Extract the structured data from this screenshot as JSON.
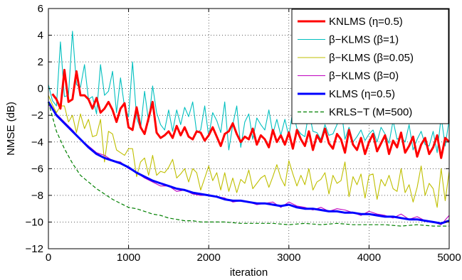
{
  "chart_data": {
    "type": "line",
    "xlabel": "iteration",
    "ylabel": "NMSE (dB)",
    "xlim": [
      0,
      5000
    ],
    "ylim": [
      -12,
      6
    ],
    "xticks": [
      0,
      1000,
      2000,
      3000,
      4000,
      5000
    ],
    "yticks": [
      -12,
      -10,
      -8,
      -6,
      -4,
      -2,
      0,
      2,
      4,
      6
    ],
    "xtick_labels": [
      "0",
      "1000",
      "2000",
      "3000",
      "4000",
      "5000"
    ],
    "ytick_labels": [
      "−12",
      "−10",
      "−8",
      "−6",
      "−4",
      "−2",
      "0",
      "2",
      "4",
      "6"
    ],
    "grid": true,
    "legend_position": "top-right",
    "series": [
      {
        "name": "KNLMS (η=0.5)",
        "color": "#ff0000",
        "style": "solid-thick",
        "x": [
          50,
          100,
          150,
          200,
          250,
          300,
          350,
          400,
          450,
          500,
          550,
          600,
          650,
          700,
          750,
          800,
          850,
          900,
          950,
          1000,
          1050,
          1100,
          1150,
          1200,
          1250,
          1300,
          1350,
          1400,
          1450,
          1500,
          1550,
          1600,
          1650,
          1700,
          1750,
          1800,
          1850,
          1900,
          1950,
          2000,
          2050,
          2100,
          2150,
          2200,
          2250,
          2300,
          2350,
          2400,
          2450,
          2500,
          2550,
          2600,
          2650,
          2700,
          2750,
          2800,
          2850,
          2900,
          2950,
          3000,
          3050,
          3100,
          3150,
          3200,
          3250,
          3300,
          3350,
          3400,
          3450,
          3500,
          3550,
          3600,
          3650,
          3700,
          3750,
          3800,
          3850,
          3900,
          3950,
          4000,
          4050,
          4100,
          4150,
          4200,
          4250,
          4300,
          4350,
          4400,
          4450,
          4500,
          4550,
          4600,
          4650,
          4700,
          4750,
          4800,
          4850,
          4900,
          4950,
          5000
        ],
        "values": [
          -0.4,
          -0.8,
          -1.5,
          1.4,
          -1.0,
          -0.8,
          1.3,
          -0.5,
          -0.5,
          -0.8,
          -1.5,
          -0.7,
          -1.8,
          -1.5,
          -1.0,
          -1.6,
          -2.5,
          -1.5,
          -1.1,
          -2.9,
          -3.1,
          -1.4,
          -2.9,
          -3.4,
          -2.2,
          -1.0,
          -3.3,
          -3.7,
          -3.5,
          -3.2,
          -3.7,
          -2.8,
          -3.5,
          -2.9,
          -3.6,
          -3.8,
          -3.2,
          -3.3,
          -3.9,
          -3.5,
          -2.9,
          -3.6,
          -4.3,
          -3.4,
          -3.2,
          -2.6,
          -3.4,
          -4.0,
          -3.6,
          -3.8,
          -3.0,
          -4.2,
          -3.5,
          -3.8,
          -4.4,
          -3.1,
          -4.0,
          -3.5,
          -4.2,
          -3.3,
          -4.5,
          -3.1,
          -3.8,
          -4.3,
          -3.2,
          -4.6,
          -3.5,
          -4.0,
          -3.0,
          -4.1,
          -4.5,
          -3.4,
          -3.8,
          -4.8,
          -3.1,
          -4.2,
          -4.6,
          -3.7,
          -4.9,
          -4.0,
          -3.4,
          -4.7,
          -4.1,
          -3.5,
          -4.9,
          -3.9,
          -4.4,
          -3.3,
          -4.8,
          -4.3,
          -3.6,
          -5.1,
          -4.2,
          -3.7,
          -4.9,
          -4.4,
          -3.5,
          -5.2,
          -3.7,
          -4.0
        ]
      },
      {
        "name": "β−KLMS (β=1)",
        "color": "#00bfbf",
        "style": "solid-thin",
        "x": [
          0,
          50,
          100,
          150,
          200,
          250,
          300,
          350,
          400,
          450,
          500,
          550,
          600,
          650,
          700,
          750,
          800,
          850,
          900,
          950,
          1000,
          1050,
          1100,
          1150,
          1200,
          1250,
          1300,
          1350,
          1400,
          1450,
          1500,
          1550,
          1600,
          1650,
          1700,
          1750,
          1800,
          1850,
          1900,
          1950,
          2000,
          2050,
          2100,
          2150,
          2200,
          2250,
          2300,
          2350,
          2400,
          2450,
          2500,
          2550,
          2600,
          2650,
          2700,
          2750,
          2800,
          2850,
          2900,
          2950,
          3000,
          3050,
          3100,
          3150,
          3200,
          3250,
          3300,
          3350,
          3400,
          3450,
          3500,
          3550,
          3600,
          3650,
          3700,
          3750,
          3800,
          3850,
          3900,
          3950,
          4000,
          4050,
          4100,
          4150,
          4200,
          4250,
          4300,
          4350,
          4400,
          4450,
          4500,
          4550,
          4600,
          4650,
          4700,
          4750,
          4800,
          4850,
          4900,
          4950,
          5000
        ],
        "values": [
          0.3,
          -0.9,
          -1.3,
          3.5,
          -0.6,
          -0.5,
          4.3,
          0.3,
          0.1,
          1.8,
          -0.8,
          -0.6,
          -1.9,
          1.8,
          -0.5,
          -0.2,
          1.3,
          -1.8,
          0.8,
          -1.4,
          -2.1,
          2.0,
          -2.2,
          -3.0,
          -0.2,
          -2.5,
          0.2,
          -1.8,
          -2.7,
          -3.1,
          -1.6,
          -3.2,
          -1.6,
          -2.7,
          -1.4,
          -2.1,
          -1.0,
          -3.3,
          -3.1,
          -1.3,
          -3.6,
          -1.8,
          -2.4,
          -3.3,
          -1.0,
          -4.6,
          -2.7,
          -1.3,
          -4.4,
          -2.5,
          -1.9,
          -3.8,
          -2.2,
          -2.7,
          -3.1,
          -1.6,
          -3.4,
          -2.3,
          -3.5,
          -2.3,
          -3.6,
          -1.6,
          -3.0,
          -3.4,
          -3.6,
          -1.7,
          -3.2,
          -3.3,
          -3.8,
          -2.7,
          -3.5,
          -3.4,
          -2.7,
          -1.4,
          -3.8,
          -2.9,
          -4.0,
          -3.6,
          -3.1,
          -3.9,
          -3.4,
          -3.1,
          -4.0,
          -2.9,
          -3.4,
          -4.1,
          -2.4,
          -3.8,
          -3.6,
          -4.0,
          -2.7,
          -4.6,
          -3.8,
          -3.2,
          -4.2,
          -4.3,
          -3.2,
          -4.8,
          -2.1,
          -4.3,
          -2.3
        ]
      },
      {
        "name": "β−KLMS (β=0.05)",
        "color": "#bfbf00",
        "style": "solid-thin",
        "x": [
          0,
          50,
          100,
          150,
          200,
          250,
          300,
          350,
          400,
          450,
          500,
          550,
          600,
          650,
          700,
          750,
          800,
          850,
          900,
          950,
          1000,
          1050,
          1100,
          1150,
          1200,
          1250,
          1300,
          1350,
          1400,
          1450,
          1500,
          1550,
          1600,
          1650,
          1700,
          1750,
          1800,
          1850,
          1900,
          1950,
          2000,
          2050,
          2100,
          2150,
          2200,
          2250,
          2300,
          2350,
          2400,
          2450,
          2500,
          2550,
          2600,
          2650,
          2700,
          2750,
          2800,
          2850,
          2900,
          2950,
          3000,
          3050,
          3100,
          3150,
          3200,
          3250,
          3300,
          3350,
          3400,
          3450,
          3500,
          3550,
          3600,
          3650,
          3700,
          3750,
          3800,
          3850,
          3900,
          3950,
          4000,
          4050,
          4100,
          4150,
          4200,
          4250,
          4300,
          4350,
          4400,
          4450,
          4500,
          4550,
          4600,
          4650,
          4700,
          4750,
          4800,
          4850,
          4900,
          4950,
          5000
        ],
        "values": [
          -0.5,
          -1.2,
          -1.8,
          -1.3,
          -1.3,
          -2.5,
          -2.0,
          -3.3,
          -1.9,
          -3.0,
          -2.3,
          -3.6,
          -3.5,
          -2.3,
          -5.5,
          -3.2,
          -3.4,
          -4.6,
          -4.8,
          -5.0,
          -4.5,
          -4.5,
          -6.6,
          -5.5,
          -5.2,
          -6.5,
          -5.0,
          -6.5,
          -6.2,
          -6.3,
          -5.9,
          -5.3,
          -6.7,
          -6.4,
          -6.0,
          -7.0,
          -6.0,
          -6.3,
          -7.6,
          -6.7,
          -5.8,
          -6.9,
          -6.3,
          -7.6,
          -6.3,
          -7.7,
          -6.7,
          -7.8,
          -6.8,
          -7.1,
          -6.1,
          -7.5,
          -7.1,
          -6.7,
          -6.5,
          -7.4,
          -6.6,
          -5.7,
          -6.7,
          -7.3,
          -5.4,
          -6.4,
          -7.3,
          -6.5,
          -7.2,
          -6.0,
          -7.6,
          -7.0,
          -6.8,
          -6.3,
          -7.9,
          -6.5,
          -7.1,
          -6.9,
          -5.5,
          -8.1,
          -6.6,
          -7.2,
          -6.4,
          -8.2,
          -6.5,
          -6.4,
          -8.3,
          -6.8,
          -7.3,
          -6.5,
          -7.5,
          -7.7,
          -6.0,
          -7.8,
          -7.2,
          -8.5,
          -7.4,
          -5.8,
          -8.0,
          -7.1,
          -7.5,
          -8.9,
          -6.0,
          -8.4,
          -6.2
        ]
      },
      {
        "name": "β−KLMS (β=0)",
        "color": "#bf00bf",
        "style": "solid-thin",
        "x": [
          0,
          100,
          200,
          300,
          400,
          500,
          600,
          700,
          800,
          900,
          1000,
          1100,
          1200,
          1300,
          1400,
          1500,
          1600,
          1700,
          1800,
          1900,
          2000,
          2100,
          2200,
          2300,
          2400,
          2500,
          2600,
          2700,
          2800,
          2900,
          3000,
          3100,
          3200,
          3300,
          3400,
          3500,
          3600,
          3700,
          3800,
          3900,
          4000,
          4100,
          4200,
          4300,
          4400,
          4500,
          4600,
          4700,
          4800,
          4900,
          5000
        ],
        "values": [
          -1.2,
          -1.9,
          -2.5,
          -3.1,
          -3.8,
          -4.3,
          -4.8,
          -5.0,
          -5.4,
          -5.5,
          -6.0,
          -6.3,
          -6.7,
          -7.0,
          -7.3,
          -7.3,
          -7.7,
          -7.6,
          -7.9,
          -8.0,
          -8.0,
          -8.1,
          -8.2,
          -8.5,
          -8.4,
          -8.5,
          -8.7,
          -8.6,
          -8.5,
          -8.9,
          -8.5,
          -8.8,
          -8.9,
          -9.1,
          -8.9,
          -9.2,
          -9.0,
          -9.1,
          -9.3,
          -9.5,
          -9.2,
          -9.4,
          -9.5,
          -9.7,
          -9.4,
          -9.8,
          -9.6,
          -9.9,
          -10.0,
          -10.2,
          -9.5
        ]
      },
      {
        "name": "KLMS (η=0.5)",
        "color": "#0000ff",
        "style": "solid-thick",
        "x": [
          0,
          100,
          200,
          300,
          400,
          500,
          600,
          700,
          800,
          900,
          1000,
          1100,
          1200,
          1300,
          1400,
          1500,
          1600,
          1700,
          1800,
          1900,
          2000,
          2100,
          2200,
          2300,
          2400,
          2500,
          2600,
          2700,
          2800,
          2900,
          3000,
          3100,
          3200,
          3300,
          3400,
          3500,
          3600,
          3700,
          3800,
          3900,
          4000,
          4100,
          4200,
          4300,
          4400,
          4500,
          4600,
          4700,
          4800,
          4900,
          5000
        ],
        "values": [
          -1.0,
          -2.0,
          -2.6,
          -3.2,
          -3.8,
          -4.4,
          -4.9,
          -5.2,
          -5.4,
          -5.6,
          -5.9,
          -6.3,
          -6.6,
          -6.9,
          -7.1,
          -7.3,
          -7.5,
          -7.6,
          -7.8,
          -7.9,
          -8.0,
          -8.1,
          -8.3,
          -8.4,
          -8.4,
          -8.5,
          -8.6,
          -8.6,
          -8.7,
          -8.8,
          -8.7,
          -8.9,
          -9.0,
          -9.0,
          -9.1,
          -9.2,
          -9.2,
          -9.3,
          -9.3,
          -9.4,
          -9.4,
          -9.5,
          -9.6,
          -9.6,
          -9.7,
          -9.8,
          -9.8,
          -9.9,
          -10.0,
          -10.1,
          -9.9
        ]
      },
      {
        "name": "KRLS−T (M=500)",
        "color": "#008000",
        "style": "dashed",
        "x": [
          0,
          100,
          200,
          300,
          400,
          500,
          600,
          700,
          800,
          900,
          1000,
          1100,
          1200,
          1300,
          1400,
          1500,
          1600,
          1700,
          1800,
          1900,
          2000,
          2200,
          2400,
          2600,
          2800,
          3000,
          3200,
          3400,
          3600,
          3800,
          4000,
          4200,
          4400,
          4600,
          4800,
          5000
        ],
        "values": [
          -1.0,
          -3.2,
          -4.5,
          -5.6,
          -6.5,
          -7.0,
          -7.5,
          -7.9,
          -8.3,
          -8.6,
          -8.9,
          -9.0,
          -9.2,
          -9.4,
          -9.5,
          -9.7,
          -9.8,
          -9.9,
          -9.9,
          -10.0,
          -10.0,
          -10.0,
          -10.1,
          -10.1,
          -10.1,
          -10.2,
          -10.1,
          -10.2,
          -10.1,
          -10.2,
          -10.2,
          -10.2,
          -10.3,
          -10.2,
          -10.3,
          -10.3
        ]
      }
    ]
  }
}
